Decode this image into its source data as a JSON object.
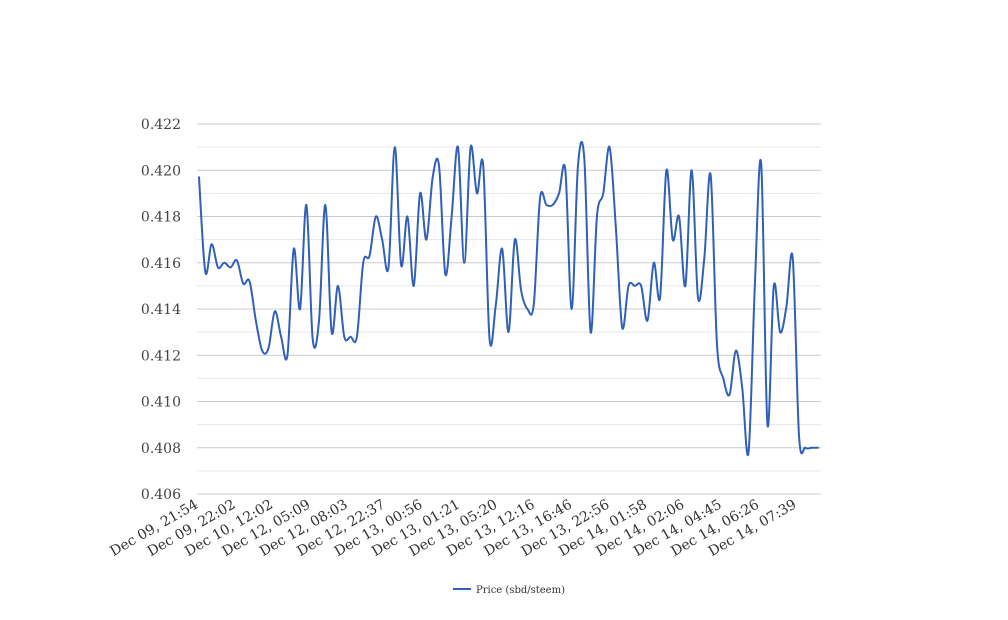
{
  "chart_data": {
    "type": "line",
    "title": "",
    "xlabel": "",
    "ylabel": "",
    "ylim": [
      0.406,
      0.422
    ],
    "yticks": [
      "0.406",
      "0.408",
      "0.410",
      "0.412",
      "0.414",
      "0.416",
      "0.418",
      "0.420",
      "0.422"
    ],
    "xtick_labels": [
      "Dec 09, 21:54",
      "Dec 09, 22:02",
      "Dec 10, 12:02",
      "Dec 12, 05:09",
      "Dec 12, 08:03",
      "Dec 12, 22:37",
      "Dec 13, 00:56",
      "Dec 13, 01:21",
      "Dec 13, 05:20",
      "Dec 13, 12:16",
      "Dec 13, 16:46",
      "Dec 13, 22:56",
      "Dec 14, 01:58",
      "Dec 14, 02:06",
      "Dec 14, 04:45",
      "Dec 14, 06:26",
      "Dec 14, 07:39"
    ],
    "grid": true,
    "legend_position": "bottom-center",
    "color": "#3060b8",
    "series": [
      {
        "name": "Price (sbd/steem)",
        "values": [
          0.4197,
          0.4156,
          0.4168,
          0.4158,
          0.416,
          0.4158,
          0.4161,
          0.4151,
          0.4152,
          0.4135,
          0.4122,
          0.4123,
          0.4139,
          0.4128,
          0.412,
          0.4166,
          0.414,
          0.4185,
          0.4127,
          0.4135,
          0.4185,
          0.413,
          0.415,
          0.4128,
          0.4128,
          0.4128,
          0.416,
          0.4163,
          0.418,
          0.417,
          0.4158,
          0.421,
          0.4159,
          0.418,
          0.415,
          0.419,
          0.417,
          0.4197,
          0.4202,
          0.4155,
          0.418,
          0.421,
          0.416,
          0.421,
          0.419,
          0.4202,
          0.4127,
          0.4142,
          0.4166,
          0.413,
          0.417,
          0.4148,
          0.414,
          0.4142,
          0.4188,
          0.4185,
          0.4185,
          0.419,
          0.42,
          0.414,
          0.4202,
          0.4205,
          0.413,
          0.418,
          0.419,
          0.421,
          0.4175,
          0.4132,
          0.415,
          0.415,
          0.415,
          0.4135,
          0.416,
          0.4145,
          0.42,
          0.417,
          0.418,
          0.415,
          0.42,
          0.4145,
          0.4162,
          0.4198,
          0.4125,
          0.411,
          0.4103,
          0.4122,
          0.4106,
          0.4078,
          0.415,
          0.4203,
          0.409,
          0.415,
          0.413,
          0.4141,
          0.4162,
          0.4085,
          0.408,
          0.408,
          0.408
        ]
      }
    ]
  }
}
